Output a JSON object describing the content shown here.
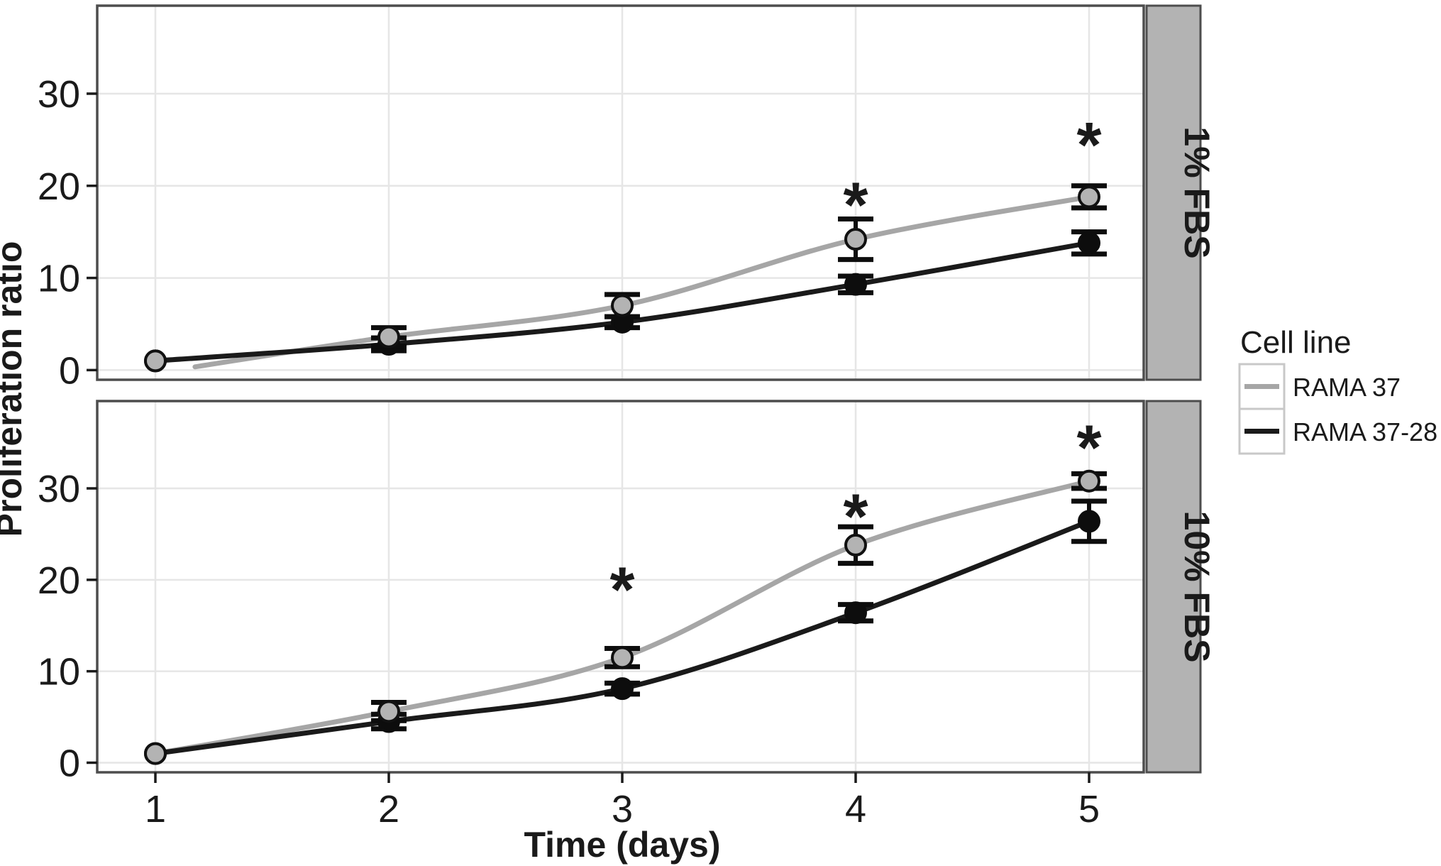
{
  "figure": {
    "title": "",
    "y_axis_title": "Proliferation ratio",
    "x_axis_title": "Time (days)"
  },
  "chart_data": {
    "type": "line",
    "title": "",
    "xlabel": "Time (days)",
    "ylabel": "Proliferation ratio",
    "x": [
      1,
      2,
      3,
      4,
      5
    ],
    "xticks": [
      1,
      2,
      3,
      4,
      5
    ],
    "yticks": [
      0,
      10,
      20,
      30
    ],
    "xlim": [
      0.75,
      5.25
    ],
    "ylim": [
      -1.05,
      39.55
    ],
    "grid": "major-only",
    "legend": {
      "title": "Cell line",
      "position": "right",
      "entries": [
        {
          "label": "RAMA 37",
          "color": "#a6a6a6"
        },
        {
          "label": "RAMA 37-28",
          "color": "#1a1a1a"
        }
      ]
    },
    "facets": [
      {
        "label": "1% FBS",
        "series": [
          {
            "name": "RAMA 37",
            "line_color": "#a6a6a6",
            "marker_fill": "#b3b3b3",
            "marker_stroke": "#111111",
            "values": [
              1.0,
              3.6,
              7.0,
              14.2,
              18.8
            ],
            "errors": [
              0,
              1.0,
              1.2,
              2.2,
              1.2
            ],
            "fit_start": [
              1.17,
              0.35
            ]
          },
          {
            "name": "RAMA 37-28",
            "line_color": "#1a1a1a",
            "marker_fill": "#0d0d0d",
            "marker_stroke": "#0d0d0d",
            "values": [
              1.0,
              2.8,
              5.2,
              9.3,
              13.8
            ],
            "errors": [
              0,
              0.7,
              0.6,
              0.9,
              1.2
            ]
          }
        ],
        "significance": [
          {
            "x": 4,
            "y": 19.5
          },
          {
            "x": 5,
            "y": 26.0
          }
        ]
      },
      {
        "label": "10% FBS",
        "series": [
          {
            "name": "RAMA 37",
            "line_color": "#a6a6a6",
            "marker_fill": "#b3b3b3",
            "marker_stroke": "#111111",
            "values": [
              1.0,
              5.6,
              11.5,
              23.8,
              30.8
            ],
            "errors": [
              0,
              1.0,
              1.0,
              2.0,
              0.8
            ]
          },
          {
            "name": "RAMA 37-28",
            "line_color": "#1a1a1a",
            "marker_fill": "#0d0d0d",
            "marker_stroke": "#0d0d0d",
            "values": [
              1.0,
              4.5,
              8.1,
              16.4,
              26.4
            ],
            "errors": [
              0,
              0.8,
              0.6,
              0.9,
              2.2
            ]
          }
        ],
        "significance": [
          {
            "x": 3,
            "y": 20.5
          },
          {
            "x": 4,
            "y": 28.5
          },
          {
            "x": 5,
            "y": 36.0
          }
        ]
      }
    ],
    "style": {
      "background": "#ffffff",
      "panel_border": "#4d4d4d",
      "grid_color": "#e6e6e6",
      "tick_color": "#1a1a1a",
      "text_color": "#1a1a1a",
      "strip_fill": "#b3b3b3",
      "strip_border": "#4d4d4d",
      "strip_text_color": "#1a1a1a",
      "error_bar_color": "#0d0d0d",
      "sig_marker": "*"
    }
  }
}
